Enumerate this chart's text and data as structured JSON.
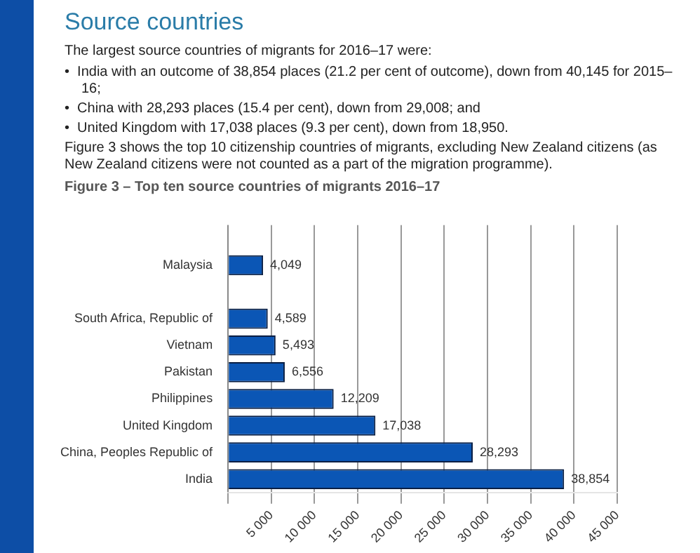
{
  "chart_data": {
    "type": "bar",
    "orientation": "horizontal",
    "title": "Source countries",
    "subtitle": "Figure 3 – Top ten source countries of migrants 2016–17",
    "annotations": [
      "The largest source countries of migrants for 2016–17 were:",
      "•  India with an outcome of 38,854 places (21.2 per cent of outcome), down from 40,145 for 2015–16;",
      "•  China with 28,293 places (15.4 per cent), down from 29,008; and",
      "•  United Kingdom with 17,038 places (9.3 per cent), down from 18,950.",
      "Figure 3 shows the top 10 citizenship countries of migrants, excluding New Zealand citizens (as New Zealand citizens were not counted as a part of the migration programme)."
    ],
    "categories": [
      null,
      "Malaysia",
      null,
      "South Africa, Republic of",
      "Vietnam",
      "Pakistan",
      "Philippines",
      "United Kingdom",
      "China, Peoples Republic of",
      "India"
    ],
    "values": [
      null,
      4049,
      null,
      4589,
      5493,
      6556,
      12209,
      17038,
      28293,
      38854
    ],
    "value_labels": [
      null,
      "4,049",
      null,
      "4,589",
      "5,493",
      "6,556",
      "12,209",
      "17,038",
      "28,293",
      "38,854"
    ],
    "color": "#0b56b5",
    "xlim": [
      0,
      45000
    ],
    "xticks": [
      {
        "value": 0,
        "label": null
      },
      {
        "value": 5000,
        "label": "5 000"
      },
      {
        "value": 10000,
        "label": "10 000"
      },
      {
        "value": 15000,
        "label": "15 000"
      },
      {
        "value": 20000,
        "label": "20 000"
      },
      {
        "value": 25000,
        "label": "25 000"
      },
      {
        "value": 30000,
        "label": "30 000"
      },
      {
        "value": 35000,
        "label": "35 000"
      },
      {
        "value": 40000,
        "label": "40 000"
      },
      {
        "value": 45000,
        "label": "45 000"
      }
    ],
    "grid": "x",
    "legend": false
  }
}
